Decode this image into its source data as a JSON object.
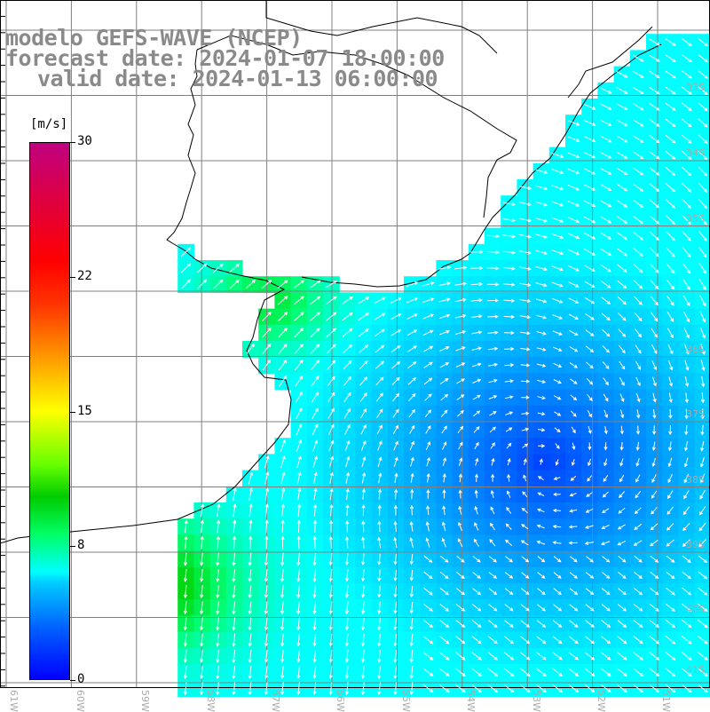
{
  "title": {
    "line1": "modelo GEFS-WAVE (NCEP)",
    "line2": "forecast date: 2024-01-07 18:00:00",
    "line3": "valid date: 2024-01-13 06:00:00"
  },
  "colorbar": {
    "unit": "[m/s]",
    "ticks": [
      "30",
      "22",
      "15",
      "8",
      "0"
    ],
    "tick_values": [
      30,
      22,
      15,
      8,
      0
    ]
  },
  "lat_labels": [
    "33S",
    "34S",
    "35S",
    "36S",
    "37S",
    "38S",
    "39S",
    "40S",
    "41S"
  ],
  "lon_labels": [
    "61W",
    "60W",
    "59W",
    "58W",
    "57W",
    "56W",
    "55W",
    "54W",
    "53W",
    "52W",
    "51W"
  ],
  "colors": {
    "land": "#ffffff",
    "coast": "#000000",
    "grid": "#808080",
    "arrow": "#ffffff",
    "title": "#8a8a8a"
  }
}
